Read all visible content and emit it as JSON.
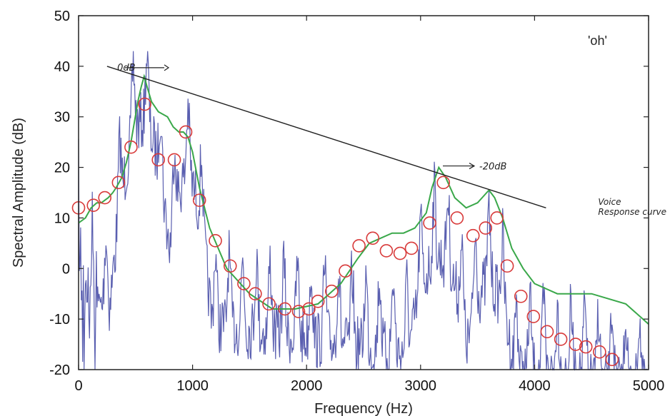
{
  "chart_data": {
    "type": "line",
    "title": "",
    "xlabel": "Frequency (Hz)",
    "ylabel": "Spectral Amplitude (dB)",
    "xlim": [
      0,
      5000
    ],
    "ylim": [
      -20,
      50
    ],
    "x_ticks": [
      0,
      1000,
      2000,
      3000,
      4000,
      5000
    ],
    "y_ticks": [
      -20,
      -10,
      0,
      10,
      20,
      30,
      40,
      50
    ],
    "grid": false,
    "inset_label": "'oh'",
    "colors": {
      "spectrum": "#5a5fb0",
      "envelope": "#3aa84a",
      "markers": "#d83a3a",
      "voice_response": "#222222"
    },
    "series": [
      {
        "kind": "line",
        "x": [
          0,
          60,
          110,
          160,
          200,
          260,
          300,
          330,
          380,
          420,
          460,
          490,
          520,
          550,
          575,
          600,
          640,
          700,
          780,
          830,
          880,
          920,
          960,
          1000,
          1060,
          1150,
          1300,
          1500,
          1700,
          1900,
          2100,
          2300,
          2450,
          2550,
          2650,
          2750,
          2850,
          2950,
          3050,
          3100,
          3160,
          3220,
          3300,
          3400,
          3500,
          3560,
          3600,
          3650,
          3720,
          3800,
          3900,
          4000,
          4200,
          4500,
          4800,
          5000
        ],
        "y": [
          9,
          10,
          12,
          13,
          13,
          14,
          15,
          16,
          18,
          21,
          25,
          29,
          33,
          36,
          38,
          36,
          33,
          31,
          30,
          28,
          27,
          27,
          26,
          23,
          16,
          8,
          0,
          -5,
          -8,
          -8,
          -7,
          -3,
          2,
          5,
          6,
          7,
          7,
          8,
          11,
          16,
          20,
          18,
          14,
          12,
          13,
          14.5,
          15.5,
          14,
          10,
          4,
          0,
          -3,
          -5,
          -5,
          -7,
          -11
        ]
      },
      {
        "kind": "markers",
        "x": [
          0,
          130,
          230,
          350,
          460,
          580,
          700,
          840,
          940,
          1060,
          1200,
          1330,
          1450,
          1550,
          1670,
          1810,
          1930,
          2020,
          2100,
          2220,
          2340,
          2460,
          2580,
          2700,
          2820,
          2920,
          3080,
          3200,
          3320,
          3460,
          3570,
          3670,
          3760,
          3880,
          3990,
          4110,
          4230,
          4360,
          4450,
          4570,
          4680
        ],
        "y": [
          12,
          12.5,
          14,
          17,
          24,
          32.5,
          21.5,
          21.5,
          27,
          13.5,
          5.5,
          0.5,
          -3,
          -5,
          -7,
          -8,
          -8.5,
          -8,
          -6.5,
          -4.5,
          -0.5,
          4.5,
          6,
          3.5,
          3,
          4,
          9,
          17,
          10,
          6.5,
          8,
          10,
          0.5,
          -5.5,
          -9.5,
          -12.5,
          -14,
          -15,
          -15.5,
          -16.5,
          -18
        ]
      },
      {
        "kind": "line",
        "x": [
          250,
          4100
        ],
        "y": [
          40,
          12
        ]
      }
    ],
    "annotations": [
      {
        "text": "0dB",
        "x": 840,
        "y": 40
      },
      {
        "text": "-20dB",
        "x": 3560,
        "y": 20
      },
      {
        "text": "Voice",
        "x": 4050,
        "y": 13.2
      },
      {
        "text": "Response curve",
        "x": 4050,
        "y": 11.2
      }
    ]
  }
}
